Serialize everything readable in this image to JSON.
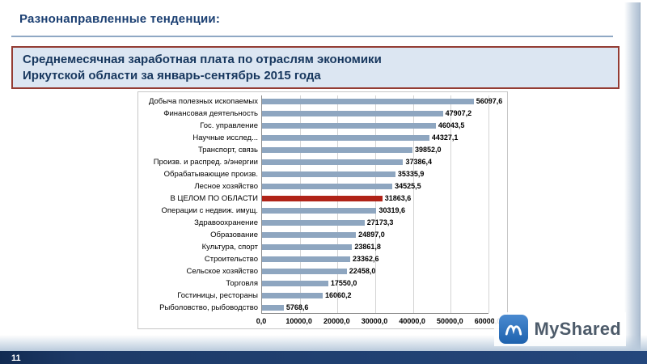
{
  "header": {
    "title": "Разнонаправленные тенденции:"
  },
  "title_box": {
    "line1": "Среднемесячная заработная плата по отраслям экономики",
    "line2": "Иркутской области за январь-сентябрь 2015 года"
  },
  "chart_data": {
    "type": "bar",
    "orientation": "horizontal",
    "title": "Среднемесячная заработная плата по отраслям экономики Иркутской области за январь-сентябрь 2015 года",
    "categories": [
      "Добыча полезных ископаемых",
      "Финансовая деятельность",
      "Гос. управление",
      "Научные исслед...",
      "Транспорт, связь",
      "Произв. и распред. э/энергии",
      "Обрабатывающие произв.",
      "Лесное хозяйство",
      "В ЦЕЛОМ ПО ОБЛАСТИ",
      "Операции с недвиж. имущ.",
      "Здравоохранение",
      "Образование",
      "Культура, спорт",
      "Строительство",
      "Сельское хозяйство",
      "Торговля",
      "Гостиницы, рестораны",
      "Рыболовство, рыбоводство"
    ],
    "values": [
      56097.6,
      47907.2,
      46043.5,
      44327.1,
      39852.0,
      37386.4,
      35335.9,
      34525.5,
      31863.6,
      30319.6,
      27173.3,
      24897.0,
      23861.8,
      23362.6,
      22458.0,
      17550.0,
      16060.2,
      5768.6
    ],
    "value_labels": [
      "56097,6",
      "47907,2",
      "46043,5",
      "44327,1",
      "39852,0",
      "37386,4",
      "35335,9",
      "34525,5",
      "31863,6",
      "30319,6",
      "27173,3",
      "24897,0",
      "23861,8",
      "23362,6",
      "22458,0",
      "17550,0",
      "16060,2",
      "5768,6"
    ],
    "highlight_index": 8,
    "highlight_category": "В ЦЕЛОМ ПО ОБЛАСТИ",
    "bar_color": "#8ea6c0",
    "highlight_color": "#b02318",
    "xlim": [
      0,
      60000
    ],
    "x_ticks": [
      "0,0",
      "10000,0",
      "20000,0",
      "30000,0",
      "40000,0",
      "50000,0",
      "60000,0"
    ],
    "grid": true,
    "legend": "none"
  },
  "watermark": {
    "text": "MyShared"
  },
  "footer": {
    "page_number": "11"
  }
}
